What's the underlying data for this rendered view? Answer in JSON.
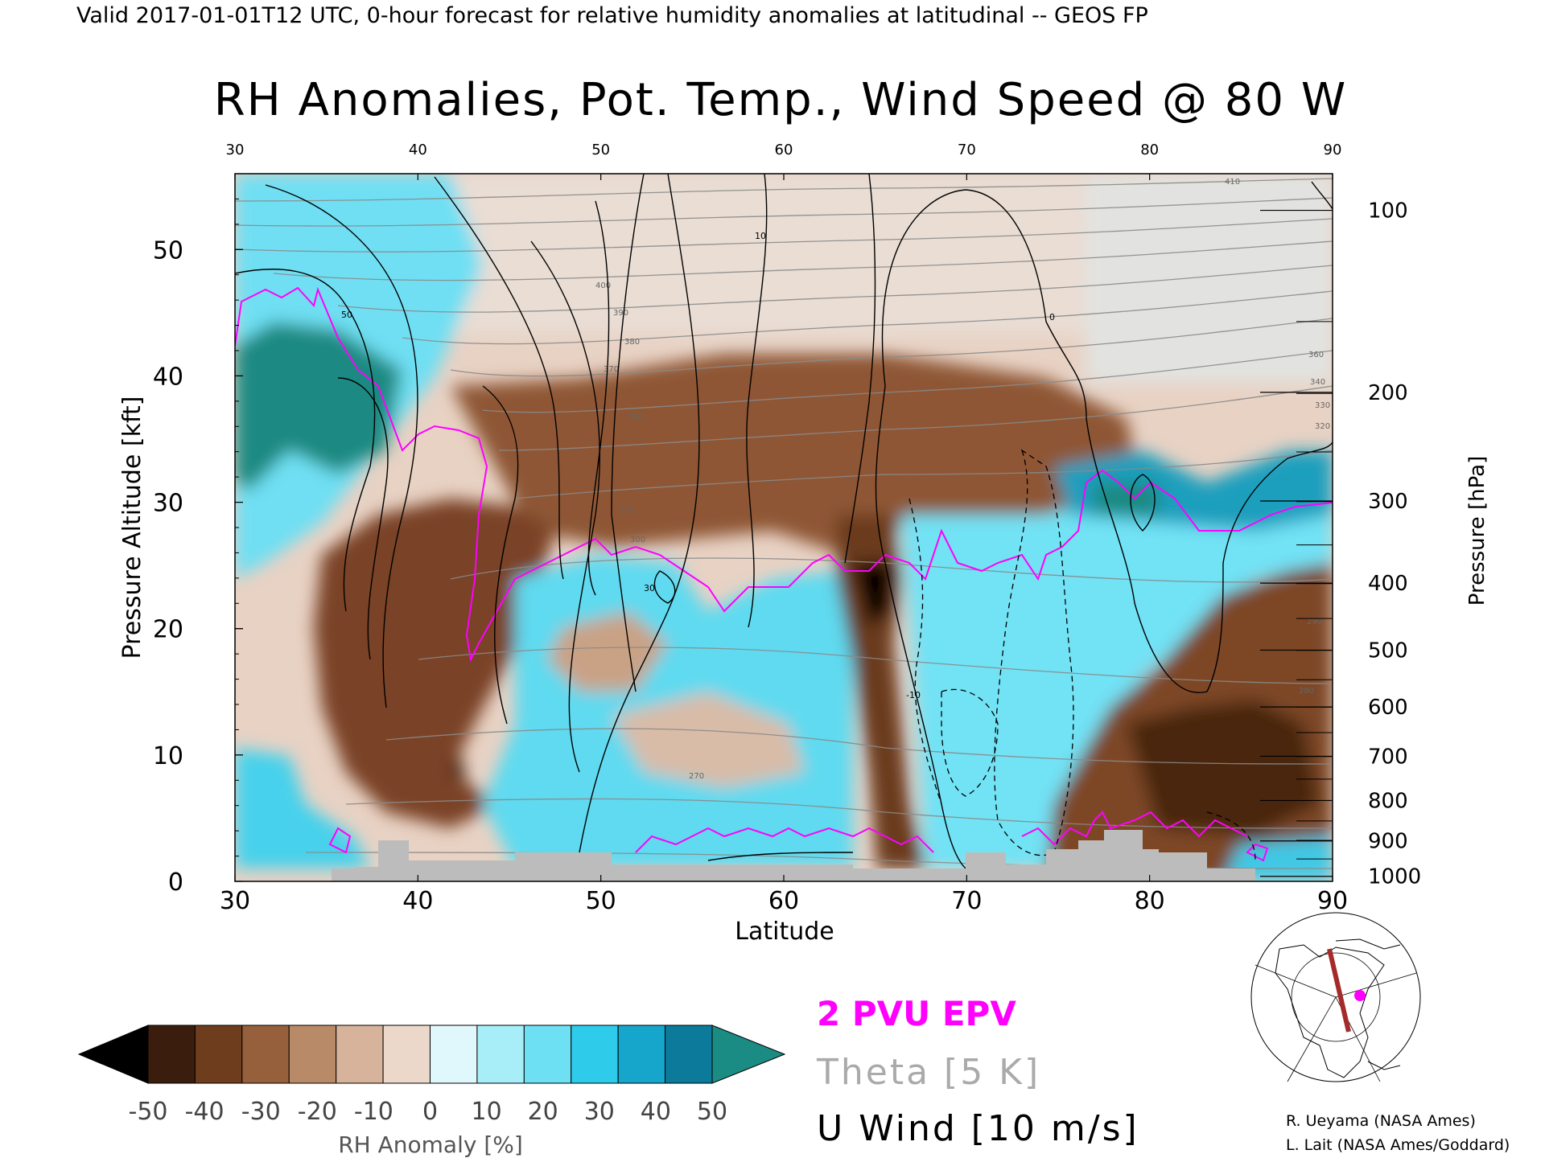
{
  "header": "Valid 2017-01-01T12 UTC, 0-hour forecast for relative humidity anomalies at latitudinal -- GEOS FP",
  "chart_data": {
    "type": "heatmap",
    "title": "RH Anomalies, Pot. Temp., Wind Speed @ 80 W",
    "xlabel": "Latitude",
    "ylabel": "Pressure Altitude [kft]",
    "y2label": "Pressure [hPa]",
    "xlim": [
      30,
      90
    ],
    "ylim": [
      0,
      56
    ],
    "x_ticks": [
      "30",
      "40",
      "50",
      "60",
      "70",
      "80",
      "90"
    ],
    "y_ticks": [
      "0",
      "10",
      "20",
      "30",
      "40",
      "50"
    ],
    "pressure_ticks": [
      {
        "hpa": "100",
        "kft": 53.1
      },
      {
        "hpa": "200",
        "kft": 38.7
      },
      {
        "hpa": "300",
        "kft": 30.1
      },
      {
        "hpa": "400",
        "kft": 23.6
      },
      {
        "hpa": "500",
        "kft": 18.3
      },
      {
        "hpa": "600",
        "kft": 13.8
      },
      {
        "hpa": "700",
        "kft": 9.9
      },
      {
        "hpa": "800",
        "kft": 6.4
      },
      {
        "hpa": "900",
        "kft": 3.2
      },
      {
        "hpa": "1000",
        "kft": 0.4
      }
    ],
    "grid": false,
    "colorbar": {
      "label": "RH Anomaly [%]",
      "ticks": [
        "-50",
        "-40",
        "-30",
        "-20",
        "-10",
        "0",
        "10",
        "20",
        "30",
        "40",
        "50"
      ],
      "colors": [
        "#000000",
        "#3a1d0c",
        "#6e3d1e",
        "#96603c",
        "#b98a67",
        "#d6b39a",
        "#ecd8cb",
        "#e0f8fc",
        "#a8eef8",
        "#6ee0f4",
        "#2ecbea",
        "#16a6cc",
        "#0c7a9a",
        "#1b8c84"
      ]
    },
    "legend": [
      {
        "label": "2 PVU EPV",
        "color": "#ff00ff"
      },
      {
        "label": "Theta [5 K]",
        "color": "#aaaaaa"
      },
      {
        "label": "U Wind [10 m/s]",
        "color": "#000000"
      }
    ],
    "theta_labels": [
      "410",
      "400",
      "390",
      "380",
      "370",
      "360",
      "350",
      "340",
      "330",
      "320",
      "310",
      "300",
      "290",
      "280",
      "270"
    ],
    "wind_labels": [
      "50",
      "30",
      "10",
      "0",
      "-10"
    ]
  },
  "credits": [
    "R. Ueyama (NASA Ames)",
    "L. Lait (NASA Ames/Goddard)"
  ]
}
